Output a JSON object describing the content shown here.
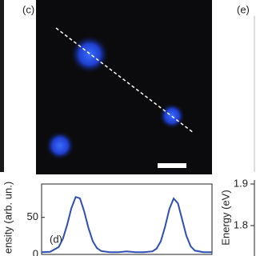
{
  "panels": {
    "c": "(c)",
    "e": "(e)",
    "d": "(d)"
  },
  "chart_data": {
    "type": "line",
    "ylabel": "ensity (arb. un.)",
    "x": [
      0,
      5,
      10,
      12.5,
      15,
      17.5,
      20,
      22.5,
      25,
      27.5,
      30,
      32.5,
      35,
      40,
      45,
      50,
      55,
      60,
      65,
      67.5,
      70,
      72.5,
      75,
      77.5,
      80,
      82.5,
      85,
      87.5,
      90,
      95,
      100
    ],
    "series": [
      {
        "color": "#2d4fb3",
        "values": [
          3,
          3.5,
          9.8,
          21,
          40,
          62.5,
          77.5,
          75.7,
          58,
          35.7,
          18,
          8.4,
          4.5,
          3,
          3,
          4,
          3,
          3,
          4.1,
          7.8,
          18,
          37.6,
          61.4,
          75.5,
          69,
          47,
          24.8,
          10.9,
          5.1,
          3,
          3
        ]
      }
    ],
    "xlim": [
      0,
      100
    ],
    "ylim": [
      0,
      95
    ],
    "yticks": [
      0,
      50
    ]
  },
  "energy_axis": {
    "label": "Energy (eV)",
    "ticks": [
      1.9,
      1.8
    ]
  }
}
